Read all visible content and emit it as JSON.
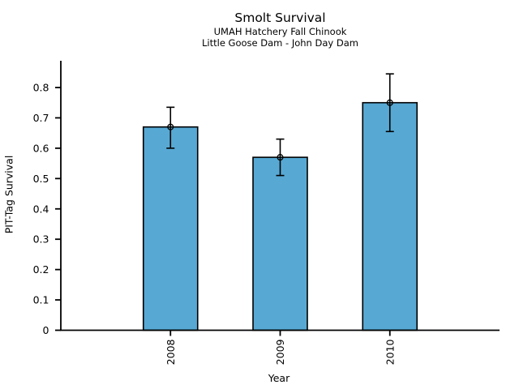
{
  "chart_data": {
    "type": "bar",
    "title": "Smolt Survival",
    "subtitle": [
      "UMAH Hatchery Fall Chinook",
      "Little Goose Dam - John Day Dam"
    ],
    "xlabel": "Year",
    "ylabel": "PIT-Tag Survival",
    "categories": [
      "2008",
      "2009",
      "2010"
    ],
    "values": [
      0.67,
      0.57,
      0.75
    ],
    "error_low": [
      0.6,
      0.51,
      0.655
    ],
    "error_high": [
      0.735,
      0.63,
      0.845
    ],
    "yticks": [
      0,
      0.1,
      0.2,
      0.3,
      0.4,
      0.5,
      0.6,
      0.7,
      0.8
    ],
    "ytick_labels": [
      "0",
      "0.1",
      "0.2",
      "0.3",
      "0.4",
      "0.5",
      "0.6",
      "0.7",
      "0.8"
    ],
    "ylim": [
      0,
      0.89
    ],
    "grid": false,
    "legend": "none",
    "marker": "open-circle",
    "bar_color": "#57A9D4",
    "bar_edge_color": "#000000",
    "error_color": "#000000",
    "axis_color": "#000000",
    "background": "#FFFFFF"
  }
}
